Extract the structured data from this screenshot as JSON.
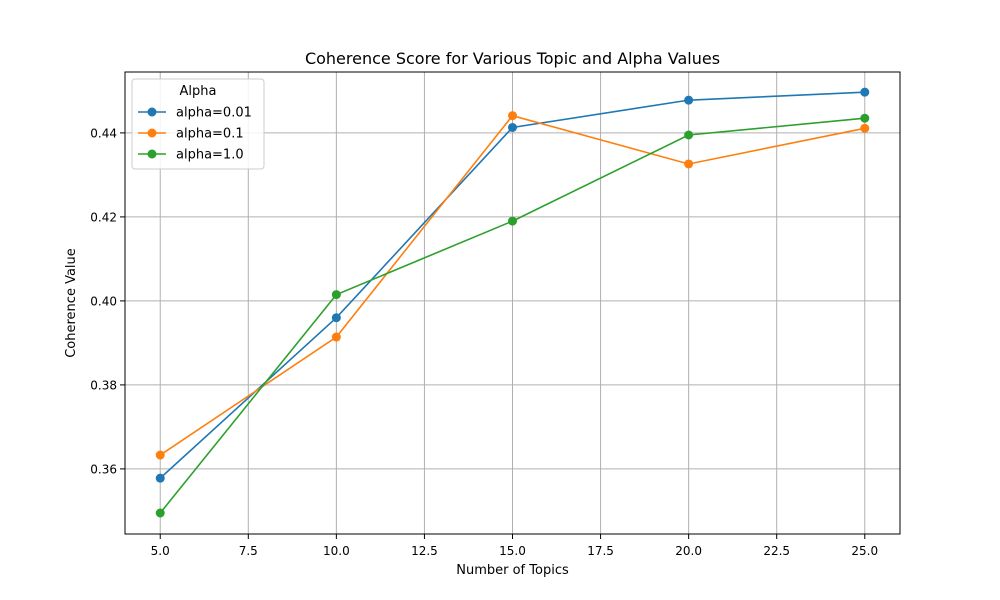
{
  "chart_data": {
    "type": "line",
    "title": "Coherence Score for Various Topic and Alpha Values",
    "xlabel": "Number of Topics",
    "ylabel": "Coherence Value",
    "x": [
      5,
      10,
      15,
      20,
      25
    ],
    "xlim": [
      4.0,
      26.0
    ],
    "ylim": [
      0.3445,
      0.4545
    ],
    "xticks": [
      5.0,
      7.5,
      10.0,
      12.5,
      15.0,
      17.5,
      20.0,
      22.5,
      25.0
    ],
    "xtick_labels": [
      "5.0",
      "7.5",
      "10.0",
      "12.5",
      "15.0",
      "17.5",
      "20.0",
      "22.5",
      "25.0"
    ],
    "yticks": [
      0.36,
      0.38,
      0.4,
      0.42,
      0.44
    ],
    "ytick_labels": [
      "0.36",
      "0.38",
      "0.40",
      "0.42",
      "0.44"
    ],
    "grid": true,
    "legend": {
      "title": "Alpha",
      "placement": "top-left"
    },
    "series": [
      {
        "name": "alpha=0.01",
        "color": "#1f77b4",
        "values": [
          0.3578,
          0.396,
          0.4413,
          0.4478,
          0.4497
        ]
      },
      {
        "name": "alpha=0.1",
        "color": "#ff7f0e",
        "values": [
          0.3633,
          0.3914,
          0.4441,
          0.4326,
          0.4411
        ]
      },
      {
        "name": "alpha=1.0",
        "color": "#2ca02c",
        "values": [
          0.3495,
          0.4015,
          0.419,
          0.4395,
          0.4435
        ]
      }
    ]
  }
}
